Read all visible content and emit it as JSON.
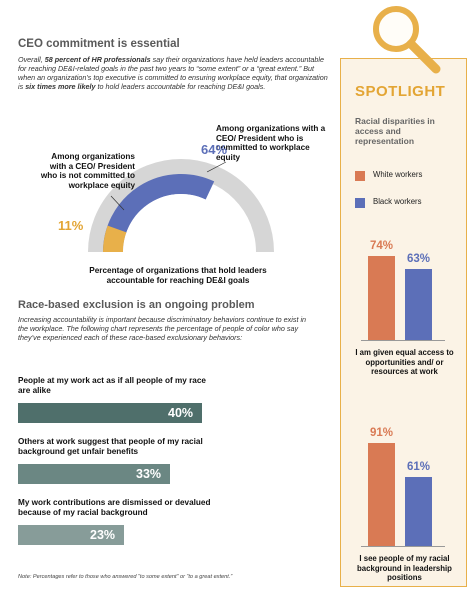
{
  "section1": {
    "title": "CEO commitment is essential",
    "intro_parts": [
      {
        "t": "Overall, ",
        "b": false
      },
      {
        "t": "58 percent of HR professionals",
        "b": true
      },
      {
        "t": " say their organizations have held leaders accountable for reaching DE&I-related goals in the past two years to “some extent” or a “great extent.” But when an organization’s top executive is committed to ensuring workplace equity, that organization is ",
        "b": false
      },
      {
        "t": "six times more likely",
        "b": true
      },
      {
        "t": " to hold leaders accountable for reaching DE&I goals.",
        "b": false
      }
    ]
  },
  "gauge": {
    "committed_pct_label": "64%",
    "not_committed_pct_label": "11%",
    "committed_label": "Among organizations with a CEO/ President who is committed to workplace equity",
    "not_committed_label": "Among organizations with a CEO/ President who is not committed to workplace equity",
    "caption": "Percentage of organizations that hold leaders accountable for reaching DE&I goals"
  },
  "section2": {
    "title": "Race-based exclusion is an ongoing problem",
    "intro": "Increasing accountability is important because discriminatory behaviors continue to exist in the workplace. The following chart represents the percentage of people of color who say they’ve experienced each of these race-based exclusionary behaviors:"
  },
  "note": "Note: Percentages refer to those who answered “to some extent” or “to a great extent.”",
  "spotlight": {
    "title": "SPOTLIGHT",
    "subtitle": "Racial disparities in access and representation",
    "legend_white": "White workers",
    "legend_black": "Black workers"
  },
  "colors": {
    "orange": "#d97a54",
    "blue": "#5c6fb8",
    "gold": "#e8b04a",
    "teal": "#4f6f6b",
    "gray_arc": "#d6d6d6"
  },
  "chart_data": [
    {
      "type": "pie",
      "caption": "Percentage of organizations that hold leaders accountable for reaching DE&I goals",
      "categories": [
        "Among organizations with a CEO/ President who is committed to workplace equity",
        "Among organizations with a CEO/ President who is not committed to workplace equity"
      ],
      "values": [
        64,
        11
      ],
      "value_labels": [
        "64%",
        "11%"
      ]
    },
    {
      "type": "bar",
      "orientation": "horizontal",
      "categories": [
        "People at my work act as if all people of my race are alike",
        "Others at work suggest that people of my racial background get unfair benefits",
        "My work contributions are dismissed or devalued because of my racial background"
      ],
      "values": [
        40,
        33,
        23
      ],
      "value_labels": [
        "40%",
        "33%",
        "23%"
      ],
      "xlim": [
        0,
        100
      ]
    },
    {
      "type": "bar",
      "categories": [
        "I am given equal access to opportunities and/ or resources at work",
        "I see people of my racial background in leadership positions"
      ],
      "series": [
        {
          "name": "White workers",
          "values": [
            74,
            91
          ],
          "value_labels": [
            "74%",
            "91%"
          ]
        },
        {
          "name": "Black workers",
          "values": [
            63,
            61
          ],
          "value_labels": [
            "63%",
            "61%"
          ]
        }
      ],
      "ylim": [
        0,
        100
      ]
    }
  ]
}
